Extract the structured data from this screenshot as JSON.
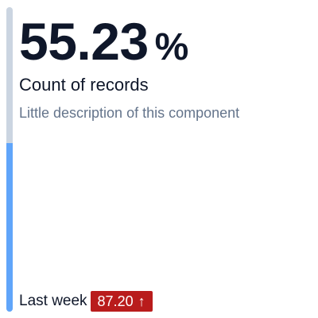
{
  "metric": {
    "value": "55.23",
    "unit": "%",
    "fraction": 0.5523
  },
  "title": "Count of records",
  "description": "Little description of this component",
  "comparison": {
    "label": "Last week",
    "value": "87.20",
    "trend_icon": "arrow-up-icon",
    "trend_glyph": "↑",
    "badge_color": "#b91c1c"
  },
  "colors": {
    "gauge_fill": "#60a5fa",
    "gauge_track": "#cbd5e1"
  }
}
